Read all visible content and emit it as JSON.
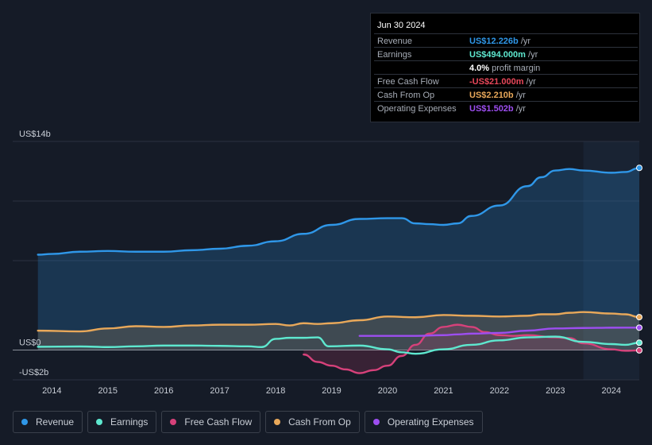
{
  "tooltip": {
    "date": "Jun 30 2024",
    "rows": [
      {
        "label": "Revenue",
        "value": "US$12.226b",
        "unit": " /yr",
        "color": "#2f97e8"
      },
      {
        "label": "Earnings",
        "value": "US$494.000m",
        "unit": " /yr",
        "color": "#5ee8cf"
      },
      {
        "label": "",
        "value": "4.0%",
        "unit": " profit margin",
        "color": "#ffffff"
      },
      {
        "label": "Free Cash Flow",
        "value": "-US$21.000m",
        "unit": " /yr",
        "color": "#e8475a"
      },
      {
        "label": "Cash From Op",
        "value": "US$2.210b",
        "unit": " /yr",
        "color": "#e8a85a"
      },
      {
        "label": "Operating Expenses",
        "value": "US$1.502b",
        "unit": " /yr",
        "color": "#9d4ef0"
      }
    ]
  },
  "legend": [
    {
      "label": "Revenue",
      "color": "#2f97e8"
    },
    {
      "label": "Earnings",
      "color": "#5ee8cf"
    },
    {
      "label": "Free Cash Flow",
      "color": "#d6417a"
    },
    {
      "label": "Cash From Op",
      "color": "#e8a85a"
    },
    {
      "label": "Operating Expenses",
      "color": "#9d4ef0"
    }
  ],
  "chart_data": {
    "type": "area",
    "title": "",
    "xlabel": "",
    "ylabel": "",
    "ylim": [
      -2,
      14
    ],
    "xlim": [
      2013.3,
      2024.5
    ],
    "y_tick_labels": [
      {
        "value": 14,
        "label": "US$14b"
      },
      {
        "value": 0,
        "label": "US$0"
      },
      {
        "value": -2,
        "label": "-US$2b"
      }
    ],
    "x_tick_labels": [
      "2014",
      "2015",
      "2016",
      "2017",
      "2018",
      "2019",
      "2020",
      "2021",
      "2022",
      "2023",
      "2024"
    ],
    "x_ticks": [
      2014,
      2015,
      2016,
      2017,
      2018,
      2019,
      2020,
      2021,
      2022,
      2023,
      2024
    ],
    "highlight_start": 2023.5,
    "series": [
      {
        "name": "Revenue",
        "color": "#2f97e8",
        "fill": true,
        "x": [
          2013.75,
          2014.0,
          2014.5,
          2015.0,
          2015.5,
          2016.0,
          2016.5,
          2017.0,
          2017.5,
          2018.0,
          2018.5,
          2019.0,
          2019.5,
          2020.0,
          2020.25,
          2020.5,
          2020.75,
          2021.0,
          2021.25,
          2021.5,
          2022.0,
          2022.5,
          2022.75,
          2023.0,
          2023.25,
          2023.5,
          2024.0,
          2024.25,
          2024.5
        ],
        "values": [
          6.4,
          6.45,
          6.6,
          6.65,
          6.6,
          6.6,
          6.7,
          6.8,
          7.0,
          7.3,
          7.8,
          8.4,
          8.8,
          8.85,
          8.85,
          8.5,
          8.45,
          8.4,
          8.5,
          9.0,
          9.7,
          11.0,
          11.6,
          12.05,
          12.15,
          12.05,
          11.9,
          11.95,
          12.226
        ]
      },
      {
        "name": "Earnings",
        "color": "#5ee8cf",
        "fill": false,
        "x": [
          2013.75,
          2014.5,
          2015.0,
          2015.5,
          2016.0,
          2016.5,
          2017.0,
          2017.5,
          2017.75,
          2018.0,
          2018.25,
          2018.5,
          2018.75,
          2018.95,
          2019.5,
          2020.0,
          2020.25,
          2020.5,
          2021.0,
          2021.5,
          2022.0,
          2022.5,
          2023.0,
          2023.5,
          2024.0,
          2024.25,
          2024.5
        ],
        "values": [
          0.22,
          0.24,
          0.2,
          0.25,
          0.3,
          0.3,
          0.28,
          0.25,
          0.2,
          0.75,
          0.82,
          0.82,
          0.85,
          0.25,
          0.3,
          0.05,
          -0.15,
          -0.25,
          0.05,
          0.35,
          0.65,
          0.85,
          0.9,
          0.55,
          0.4,
          0.35,
          0.494
        ]
      },
      {
        "name": "Free Cash Flow",
        "color": "#d6417a",
        "fill": true,
        "x": [
          2018.5,
          2018.75,
          2019.0,
          2019.25,
          2019.5,
          2019.75,
          2020.0,
          2020.25,
          2020.5,
          2020.75,
          2021.0,
          2021.25,
          2021.5,
          2021.75,
          2022.0,
          2022.25,
          2022.5,
          2023.0,
          2023.25,
          2023.5,
          2024.0,
          2024.25,
          2024.5
        ],
        "values": [
          -0.3,
          -0.8,
          -1.05,
          -1.3,
          -1.55,
          -1.35,
          -1.05,
          -0.4,
          0.35,
          1.1,
          1.55,
          1.7,
          1.55,
          1.2,
          1.0,
          0.95,
          1.0,
          0.85,
          0.8,
          0.45,
          0.05,
          -0.05,
          -0.021
        ]
      },
      {
        "name": "Cash From Op",
        "color": "#e8a85a",
        "fill": true,
        "x": [
          2013.75,
          2014.5,
          2015.0,
          2015.5,
          2016.0,
          2016.5,
          2017.0,
          2017.5,
          2018.0,
          2018.25,
          2018.5,
          2018.75,
          2019.0,
          2019.5,
          2020.0,
          2020.5,
          2021.0,
          2021.5,
          2022.0,
          2022.5,
          2022.75,
          2023.0,
          2023.25,
          2023.5,
          2024.0,
          2024.25,
          2024.5
        ],
        "values": [
          1.3,
          1.25,
          1.45,
          1.6,
          1.55,
          1.65,
          1.7,
          1.7,
          1.75,
          1.65,
          1.8,
          1.75,
          1.8,
          2.0,
          2.25,
          2.2,
          2.35,
          2.3,
          2.25,
          2.3,
          2.4,
          2.4,
          2.5,
          2.55,
          2.45,
          2.4,
          2.21
        ]
      },
      {
        "name": "Operating Expenses",
        "color": "#9d4ef0",
        "fill": false,
        "x": [
          2019.5,
          2020.0,
          2020.5,
          2021.0,
          2021.25,
          2021.5,
          2022.0,
          2022.5,
          2023.0,
          2023.5,
          2024.0,
          2024.5
        ],
        "values": [
          0.95,
          0.95,
          0.95,
          1.0,
          1.05,
          1.1,
          1.15,
          1.3,
          1.45,
          1.48,
          1.5,
          1.502
        ]
      }
    ]
  }
}
